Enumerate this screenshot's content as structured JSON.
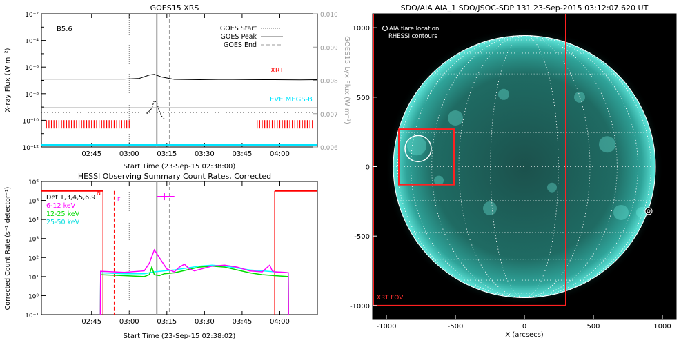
{
  "colors": {
    "xrt": "#ff0000",
    "eve": "#00e5ff",
    "low": "#ff00ff",
    "mid": "#00dd00",
    "high": "#00ffff",
    "sun": "#3fd6c8",
    "sunDark": "#0b2e2b"
  },
  "chart_data": [
    {
      "id": "goes",
      "type": "line",
      "title": "GOES15 XRS",
      "xlabel": "Start Time (23-Sep-15 02:38:00)",
      "ylabel": "X-ray Flux (W m⁻²)",
      "ylabel2": "GOES15 Lyx Flux (W m⁻²)",
      "xlim_min": [
        -13,
        97
      ],
      "ylim_exp": [
        -12,
        -2
      ],
      "ylim2": [
        0.006,
        0.01
      ],
      "x_ticks": [
        {
          "v": 7,
          "label": "02:45"
        },
        {
          "v": 22,
          "label": "03:00"
        },
        {
          "v": 37,
          "label": "03:15"
        },
        {
          "v": 52,
          "label": "03:30"
        },
        {
          "v": 67,
          "label": "03:45"
        },
        {
          "v": 82,
          "label": "04:00"
        }
      ],
      "y_ticks": [
        {
          "v": -12,
          "label": "10⁻¹²"
        },
        {
          "v": -10,
          "label": "10⁻¹⁰"
        },
        {
          "v": -8,
          "label": "10⁻⁸"
        },
        {
          "v": -6,
          "label": "10⁻⁶"
        },
        {
          "v": -4,
          "label": "10⁻⁴"
        },
        {
          "v": -2,
          "label": "10⁻²"
        }
      ],
      "y2_ticks": [
        {
          "v": 0.006,
          "label": "0.006"
        },
        {
          "v": 0.007,
          "label": "0.007"
        },
        {
          "v": 0.008,
          "label": "0.008"
        },
        {
          "v": 0.009,
          "label": "0.009"
        },
        {
          "v": 0.01,
          "label": "0.010"
        }
      ],
      "goes_class": "B5.6",
      "legend": [
        {
          "label": "GOES Start",
          "style": "dotted"
        },
        {
          "label": "GOES Peak",
          "style": "solid"
        },
        {
          "label": "GOES End",
          "style": "dashed"
        }
      ],
      "series": [
        {
          "name": "long",
          "color": "#000000",
          "x": [
            -13,
            20,
            26,
            30,
            32,
            35,
            40,
            50,
            60,
            70,
            80,
            90,
            97
          ],
          "y": [
            -6.9,
            -6.9,
            -6.85,
            -6.6,
            -6.55,
            -6.75,
            -6.92,
            -6.95,
            -6.92,
            -6.94,
            -6.95,
            -6.96,
            -6.95
          ]
        },
        {
          "name": "short",
          "color": "#000000",
          "dashed": true,
          "x": [
            29,
            31,
            32,
            33,
            34,
            35,
            36
          ],
          "y": [
            -9.5,
            -9.1,
            -8.5,
            -8.7,
            -9.3,
            -9.7,
            -9.9
          ]
        },
        {
          "name": "lya",
          "color": "#888888",
          "x": [
            -13,
            97
          ],
          "y": [
            -9.05,
            -9.05
          ]
        },
        {
          "name": "dots",
          "color": "#000000",
          "dotted": true,
          "x": [
            -13,
            97
          ],
          "y": [
            -9.4,
            -9.4
          ]
        }
      ],
      "xrt_label": "XRT",
      "eve_label": "EVE MEGS-B",
      "xrt_marks": {
        "y": -10.3,
        "intervals": [
          [
            -11,
            22
          ],
          [
            73,
            95
          ]
        ],
        "spacing": 1.0
      },
      "start_min": 22,
      "peak_min": 33,
      "end_min": 38
    },
    {
      "id": "hessi",
      "type": "line",
      "title": "HESSI Observing Summary Count Rates, Corrected",
      "xlabel": "Start Time (23-Sep-15 02:38:02)",
      "ylabel": "Corrected Count Rate (s⁻¹ detector⁻¹)",
      "xlim_min": [
        -13,
        97
      ],
      "ylim_exp": [
        -1,
        6
      ],
      "x_ticks": [
        {
          "v": 7,
          "label": "02:45"
        },
        {
          "v": 22,
          "label": "03:00"
        },
        {
          "v": 37,
          "label": "03:15"
        },
        {
          "v": 52,
          "label": "03:30"
        },
        {
          "v": 67,
          "label": "03:45"
        },
        {
          "v": 82,
          "label": "04:00"
        }
      ],
      "y_ticks": [
        {
          "v": -1,
          "label": "10⁻¹"
        },
        {
          "v": 0,
          "label": "10⁰"
        },
        {
          "v": 1,
          "label": "10¹"
        },
        {
          "v": 2,
          "label": "10²"
        },
        {
          "v": 3,
          "label": "10³"
        },
        {
          "v": 4,
          "label": "10⁴"
        },
        {
          "v": 5,
          "label": "10⁵"
        },
        {
          "v": 6,
          "label": "10⁶"
        }
      ],
      "detectors": "Det 1,3,4,5,6,9",
      "legend": [
        {
          "label": "6-12 keV",
          "color": "#ff00ff"
        },
        {
          "label": "12-25 keV",
          "color": "#00dd00"
        },
        {
          "label": "25-50 keV",
          "color": "#00ffff"
        }
      ],
      "series": [
        {
          "name": "6-12 keV",
          "color": "#ff00ff",
          "x": [
            10.5,
            10.6,
            20,
            28,
            30,
            32,
            33,
            35,
            37,
            39,
            40,
            42,
            44,
            46,
            48,
            55,
            60,
            65,
            70,
            75,
            78,
            79,
            80,
            84,
            85.4,
            85.5
          ],
          "y": [
            -1,
            1.28,
            1.22,
            1.3,
            1.7,
            2.4,
            2.2,
            1.8,
            1.4,
            1.3,
            1.25,
            1.5,
            1.65,
            1.4,
            1.3,
            1.55,
            1.6,
            1.5,
            1.3,
            1.25,
            1.6,
            1.3,
            1.25,
            1.22,
            1.2,
            -1
          ]
        },
        {
          "name": "12-25 keV",
          "color": "#00dd00",
          "x": [
            10.5,
            10.6,
            20,
            28,
            30,
            31,
            32,
            34,
            36,
            40,
            45,
            50,
            55,
            60,
            65,
            70,
            75,
            80,
            85.4,
            85.5
          ],
          "y": [
            -1,
            1.1,
            1.05,
            1.0,
            1.1,
            1.5,
            1.1,
            1.05,
            1.15,
            1.2,
            1.35,
            1.5,
            1.55,
            1.5,
            1.35,
            1.2,
            1.1,
            1.05,
            1.0,
            -1
          ]
        },
        {
          "name": "25-50 keV",
          "color": "#00ffff",
          "x": [
            10.5,
            10.6,
            20,
            28,
            32,
            36,
            40,
            45,
            50,
            55,
            60,
            65,
            70,
            75,
            80,
            85.4,
            85.5
          ],
          "y": [
            -1,
            1.2,
            1.15,
            1.15,
            1.25,
            1.3,
            1.35,
            1.45,
            1.55,
            1.6,
            1.55,
            1.45,
            1.35,
            1.3,
            1.25,
            1.2,
            -1
          ]
        }
      ],
      "attenuator_label": "N",
      "flare_label": "F",
      "flare_bar": [
        33,
        40
      ],
      "flare_y": 5.2,
      "night_intervals": [
        [
          -13,
          11.5
        ],
        [
          80,
          97
        ]
      ],
      "night_y": 5.5,
      "night_marker_min": 16,
      "start_min": 22,
      "peak_min": 33,
      "end_min": 38
    },
    {
      "id": "aia",
      "type": "scatter",
      "title": "SDO/AIA AIA_1 SDO/JSOC-SDP 131 23-Sep-2015 03:12:07.620 UT",
      "xlabel": "X (arcsecs)",
      "xlim": [
        -1100,
        1100
      ],
      "ylim": [
        -1100,
        1100
      ],
      "x_ticks": [
        {
          "v": -1000,
          "label": "-1000"
        },
        {
          "v": -500,
          "label": "-500"
        },
        {
          "v": 0,
          "label": "0"
        },
        {
          "v": 500,
          "label": "500"
        },
        {
          "v": 1000,
          "label": "1000"
        }
      ],
      "y_ticks": [
        {
          "v": 1000,
          "label": "1000"
        },
        {
          "v": 500,
          "label": "500"
        },
        {
          "v": 0,
          "label": "0"
        },
        {
          "v": -500,
          "label": "-500"
        },
        {
          "v": -1000,
          "label": "-1000"
        }
      ],
      "legend_flare": "AIA flare location",
      "legend_rhessi": "RHESSI contours",
      "sun_radius_arcsec": 950,
      "xrt_fov_label": "XRT FOV",
      "xrt_fov": {
        "x": [
          -1100,
          300
        ],
        "y": [
          -1000,
          1100
        ]
      },
      "flare_box": {
        "x": [
          -910,
          -510
        ],
        "y": [
          -130,
          270
        ]
      },
      "flare_circle": {
        "cx": -770,
        "cy": 130,
        "r": 95
      },
      "limb_marker": {
        "cx": 900,
        "cy": -320
      }
    }
  ]
}
